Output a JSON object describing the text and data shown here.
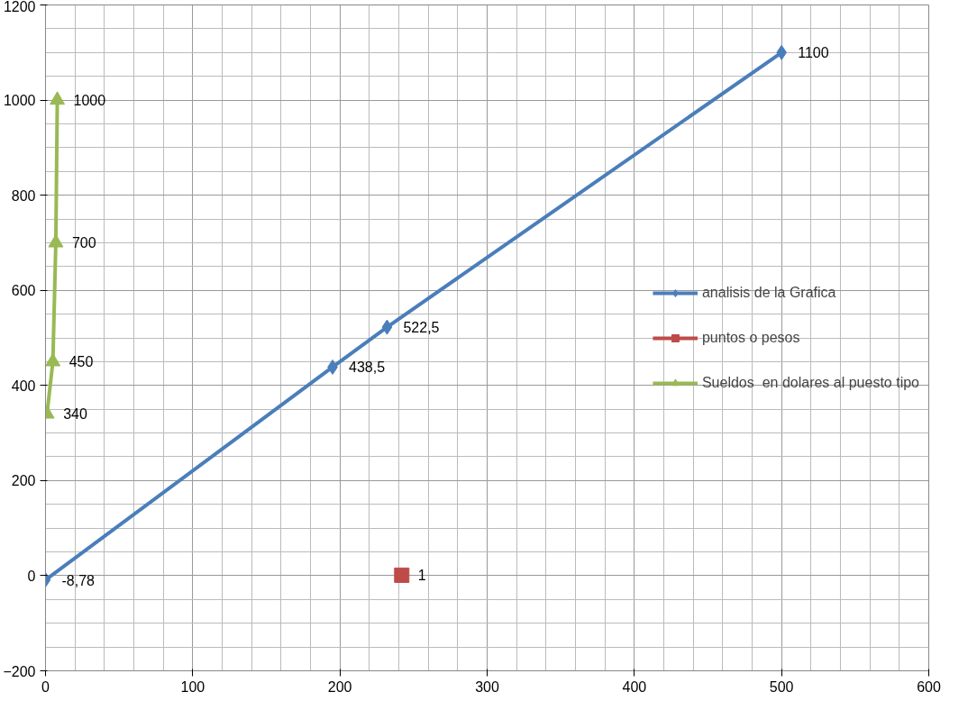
{
  "chart_data": {
    "type": "line",
    "series": [
      {
        "name": "analisis de la Grafica",
        "color": "#4a7ebb",
        "marker": "diamond",
        "x": [
          0,
          195,
          232,
          500
        ],
        "values": [
          -8.78,
          438.5,
          522.5,
          1100
        ],
        "value_labels": [
          "-8,78",
          "438,5",
          "522,5",
          "1100"
        ]
      },
      {
        "name": "puntos o pesos",
        "color": "#be4b48",
        "marker": "square",
        "x": [
          242
        ],
        "values": [
          1
        ],
        "value_labels": [
          "1"
        ]
      },
      {
        "name": "Sueldos  en dolares al puesto tipo",
        "color": "#98b954",
        "marker": "triangle",
        "x": [
          1,
          5,
          7,
          8
        ],
        "values": [
          340,
          450,
          700,
          1000
        ],
        "value_labels": [
          "340",
          "450",
          "700",
          "1000"
        ]
      }
    ],
    "xlim": [
      0,
      600
    ],
    "xticks": [
      0,
      100,
      200,
      300,
      400,
      500,
      600
    ],
    "ylim": [
      -200,
      1200
    ],
    "yticks": [
      -200,
      0,
      200,
      400,
      600,
      800,
      1000,
      1200
    ],
    "grid": true,
    "legend": "right"
  }
}
